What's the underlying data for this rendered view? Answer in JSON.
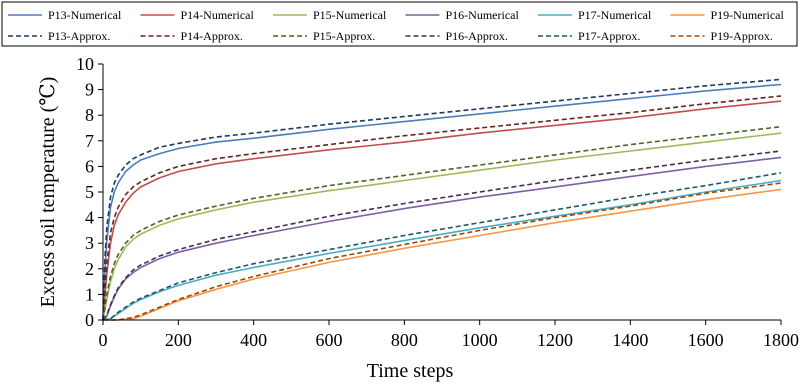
{
  "chart_data": {
    "type": "line",
    "title": "",
    "xlabel": "Time steps",
    "ylabel": "Excess soil temperature (℃)",
    "xlim": [
      0,
      1800
    ],
    "ylim": [
      0,
      10
    ],
    "x_ticks": [
      0,
      200,
      400,
      600,
      800,
      1000,
      1200,
      1400,
      1600,
      1800
    ],
    "y_ticks": [
      0,
      1,
      2,
      3,
      4,
      5,
      6,
      7,
      8,
      9,
      10
    ],
    "grid": false,
    "legend_position": "top",
    "series": [
      {
        "name": "P13-Numerical",
        "style": "solid",
        "color": "#4a7ebb",
        "x": [
          0,
          5,
          10,
          20,
          30,
          40,
          60,
          80,
          100,
          150,
          200,
          300,
          400,
          600,
          800,
          1000,
          1200,
          1400,
          1600,
          1800
        ],
        "y": [
          0,
          1.9,
          3.1,
          4.4,
          5.0,
          5.35,
          5.8,
          6.05,
          6.25,
          6.5,
          6.7,
          6.95,
          7.1,
          7.45,
          7.75,
          8.05,
          8.35,
          8.65,
          8.95,
          9.2
        ]
      },
      {
        "name": "P14-Numerical",
        "style": "solid",
        "color": "#c0504d",
        "x": [
          0,
          5,
          10,
          20,
          30,
          40,
          60,
          80,
          100,
          150,
          200,
          300,
          400,
          600,
          800,
          1000,
          1200,
          1400,
          1600,
          1800
        ],
        "y": [
          0,
          0.9,
          1.8,
          3.0,
          3.7,
          4.1,
          4.6,
          4.95,
          5.2,
          5.55,
          5.8,
          6.1,
          6.3,
          6.65,
          6.95,
          7.3,
          7.6,
          7.9,
          8.25,
          8.55
        ]
      },
      {
        "name": "P15-Numerical",
        "style": "solid",
        "color": "#9bbb59",
        "x": [
          0,
          10,
          20,
          30,
          40,
          60,
          80,
          100,
          150,
          200,
          300,
          400,
          600,
          800,
          1000,
          1200,
          1400,
          1600,
          1800
        ],
        "y": [
          0,
          0.8,
          1.5,
          2.0,
          2.35,
          2.85,
          3.15,
          3.35,
          3.7,
          3.95,
          4.3,
          4.6,
          5.05,
          5.45,
          5.85,
          6.25,
          6.6,
          6.95,
          7.3
        ]
      },
      {
        "name": "P16-Numerical",
        "style": "solid",
        "color": "#7f5fa5",
        "x": [
          0,
          10,
          20,
          30,
          40,
          60,
          80,
          100,
          150,
          200,
          300,
          400,
          600,
          800,
          1000,
          1200,
          1400,
          1600,
          1800
        ],
        "y": [
          0,
          0.15,
          0.55,
          0.9,
          1.2,
          1.6,
          1.85,
          2.05,
          2.4,
          2.65,
          3.0,
          3.3,
          3.85,
          4.35,
          4.8,
          5.2,
          5.6,
          6.0,
          6.35
        ]
      },
      {
        "name": "P17-Numerical",
        "style": "solid",
        "color": "#4bacc6",
        "x": [
          0,
          20,
          40,
          60,
          80,
          100,
          150,
          200,
          300,
          400,
          600,
          800,
          1000,
          1200,
          1400,
          1600,
          1800
        ],
        "y": [
          0,
          0.05,
          0.25,
          0.45,
          0.65,
          0.8,
          1.1,
          1.35,
          1.75,
          2.05,
          2.6,
          3.1,
          3.6,
          4.05,
          4.5,
          5.0,
          5.45
        ]
      },
      {
        "name": "P19-Numerical",
        "style": "solid",
        "color": "#f79646",
        "x": [
          0,
          40,
          80,
          100,
          150,
          200,
          300,
          400,
          600,
          800,
          1000,
          1200,
          1400,
          1600,
          1800
        ],
        "y": [
          0,
          0.0,
          0.05,
          0.15,
          0.45,
          0.75,
          1.2,
          1.6,
          2.25,
          2.8,
          3.3,
          3.8,
          4.25,
          4.7,
          5.1
        ]
      },
      {
        "name": "P13-Approx.",
        "style": "dashed",
        "color": "#1f3864",
        "x": [
          0,
          5,
          10,
          20,
          30,
          40,
          60,
          80,
          100,
          150,
          200,
          300,
          400,
          600,
          800,
          1000,
          1200,
          1400,
          1600,
          1800
        ],
        "y": [
          0,
          2.4,
          3.6,
          4.8,
          5.35,
          5.65,
          6.05,
          6.3,
          6.45,
          6.75,
          6.9,
          7.15,
          7.3,
          7.65,
          7.95,
          8.25,
          8.55,
          8.85,
          9.15,
          9.4
        ]
      },
      {
        "name": "P14-Approx.",
        "style": "dashed",
        "color": "#632523",
        "x": [
          0,
          5,
          10,
          20,
          30,
          40,
          60,
          80,
          100,
          150,
          200,
          300,
          400,
          600,
          800,
          1000,
          1200,
          1400,
          1600,
          1800
        ],
        "y": [
          0,
          1.2,
          2.2,
          3.4,
          4.0,
          4.4,
          4.9,
          5.2,
          5.4,
          5.75,
          6.0,
          6.3,
          6.5,
          6.85,
          7.2,
          7.5,
          7.8,
          8.1,
          8.45,
          8.75
        ]
      },
      {
        "name": "P15-Approx.",
        "style": "dashed",
        "color": "#4f6228",
        "x": [
          0,
          10,
          20,
          30,
          40,
          60,
          80,
          100,
          150,
          200,
          300,
          400,
          600,
          800,
          1000,
          1200,
          1400,
          1600,
          1800
        ],
        "y": [
          0,
          1.0,
          1.7,
          2.2,
          2.55,
          3.0,
          3.3,
          3.5,
          3.85,
          4.1,
          4.45,
          4.75,
          5.25,
          5.65,
          6.05,
          6.45,
          6.85,
          7.2,
          7.55
        ]
      },
      {
        "name": "P16-Approx.",
        "style": "dashed",
        "color": "#3f3151",
        "x": [
          0,
          10,
          20,
          30,
          40,
          60,
          80,
          100,
          150,
          200,
          300,
          400,
          600,
          800,
          1000,
          1200,
          1400,
          1600,
          1800
        ],
        "y": [
          0,
          0.2,
          0.6,
          0.95,
          1.25,
          1.65,
          1.95,
          2.15,
          2.5,
          2.75,
          3.15,
          3.45,
          4.05,
          4.55,
          5.0,
          5.45,
          5.85,
          6.25,
          6.6
        ]
      },
      {
        "name": "P17-Approx.",
        "style": "dashed",
        "color": "#215967",
        "x": [
          0,
          20,
          40,
          60,
          80,
          100,
          150,
          200,
          300,
          400,
          600,
          800,
          1000,
          1200,
          1400,
          1600,
          1800
        ],
        "y": [
          0,
          0.05,
          0.3,
          0.5,
          0.7,
          0.85,
          1.15,
          1.45,
          1.85,
          2.2,
          2.75,
          3.3,
          3.8,
          4.3,
          4.8,
          5.25,
          5.75
        ]
      },
      {
        "name": "P19-Approx.",
        "style": "dashed",
        "color": "#984807",
        "x": [
          0,
          40,
          80,
          100,
          150,
          200,
          300,
          400,
          600,
          800,
          1000,
          1200,
          1400,
          1600,
          1800
        ],
        "y": [
          0,
          0.0,
          0.1,
          0.2,
          0.5,
          0.8,
          1.3,
          1.7,
          2.4,
          2.95,
          3.5,
          4.0,
          4.45,
          4.95,
          5.35
        ]
      }
    ]
  }
}
